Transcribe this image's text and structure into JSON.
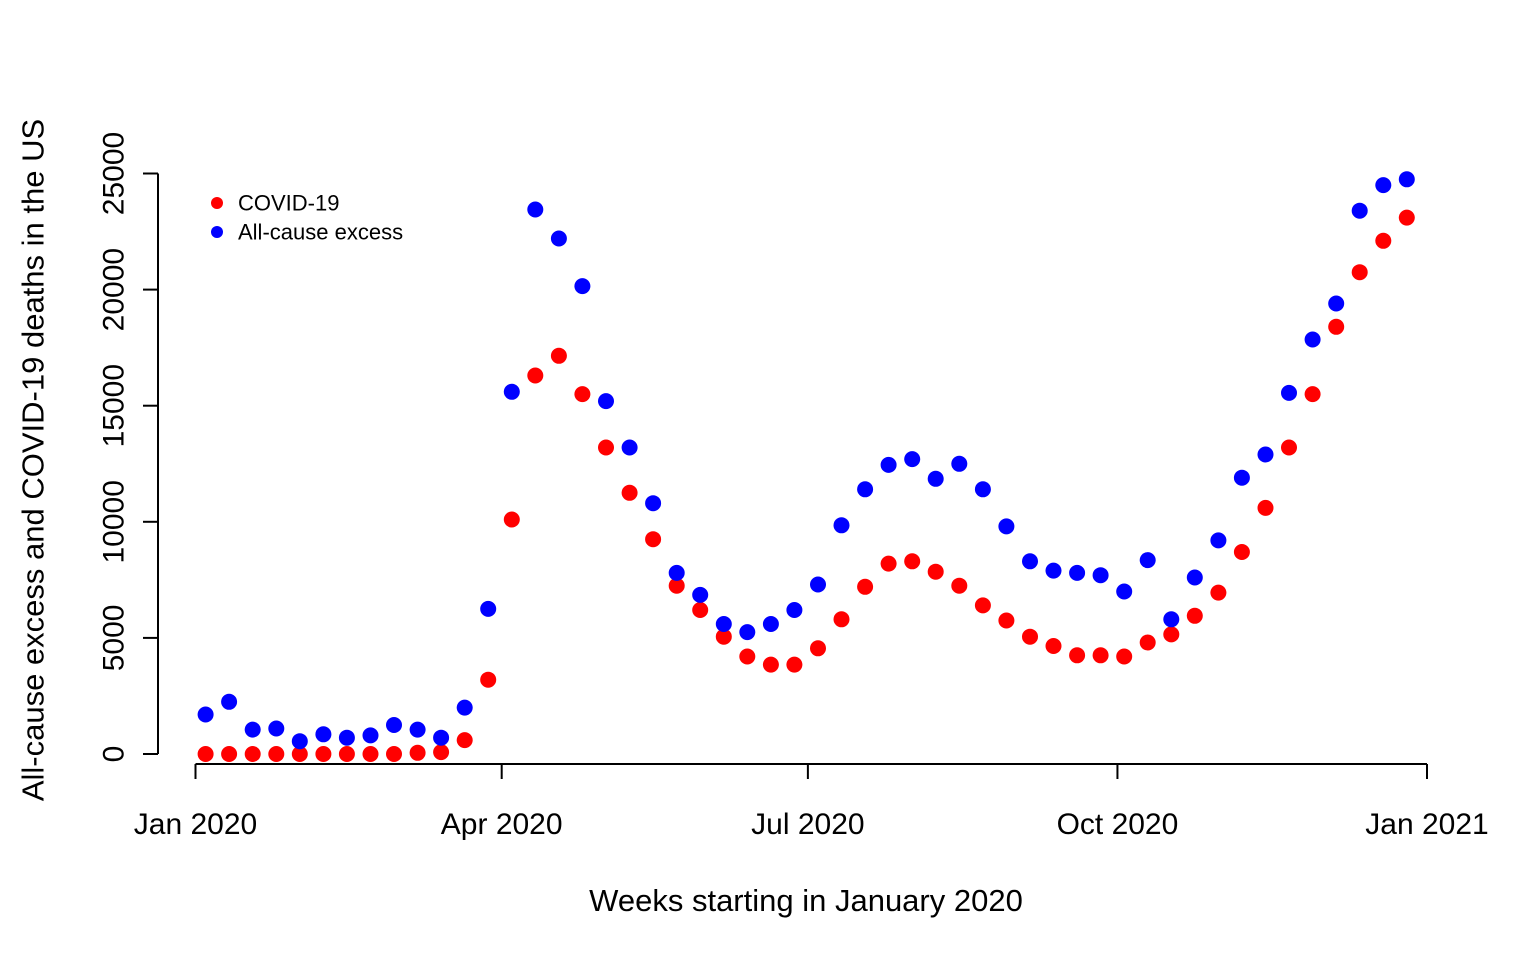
{
  "chart_data": {
    "type": "scatter",
    "title": "",
    "xlabel": "Weeks starting in January 2020",
    "ylabel": "All-cause excess and COVID-19 deaths in the US",
    "x": [
      "2020-01-04",
      "2020-01-11",
      "2020-01-18",
      "2020-01-25",
      "2020-02-01",
      "2020-02-08",
      "2020-02-15",
      "2020-02-22",
      "2020-02-29",
      "2020-03-07",
      "2020-03-14",
      "2020-03-21",
      "2020-03-28",
      "2020-04-04",
      "2020-04-11",
      "2020-04-18",
      "2020-04-25",
      "2020-05-02",
      "2020-05-09",
      "2020-05-16",
      "2020-05-23",
      "2020-05-30",
      "2020-06-06",
      "2020-06-13",
      "2020-06-20",
      "2020-06-27",
      "2020-07-04",
      "2020-07-11",
      "2020-07-18",
      "2020-07-25",
      "2020-08-01",
      "2020-08-08",
      "2020-08-15",
      "2020-08-22",
      "2020-08-29",
      "2020-09-05",
      "2020-09-12",
      "2020-09-19",
      "2020-09-26",
      "2020-10-03",
      "2020-10-10",
      "2020-10-17",
      "2020-10-24",
      "2020-10-31",
      "2020-11-07",
      "2020-11-14",
      "2020-11-21",
      "2020-11-28",
      "2020-12-05",
      "2020-12-12",
      "2020-12-19",
      "2020-12-26"
    ],
    "series": [
      {
        "name": "COVID-19",
        "color": "#ff0000",
        "values": [
          0,
          0,
          0,
          0,
          0,
          0,
          0,
          0,
          0,
          50,
          80,
          600,
          3200,
          10100,
          16300,
          17150,
          15500,
          13200,
          11250,
          9250,
          7250,
          6200,
          5050,
          4200,
          3850,
          3850,
          4550,
          5800,
          7200,
          8200,
          8300,
          7850,
          7250,
          6400,
          5750,
          5050,
          4650,
          4250,
          4250,
          4200,
          4800,
          5150,
          5950,
          6950,
          8700,
          10600,
          13200,
          15500,
          18400,
          20750,
          22100,
          23100
        ]
      },
      {
        "name": "All-cause excess",
        "color": "#0000ff",
        "values": [
          1700,
          2250,
          1050,
          1100,
          550,
          850,
          700,
          800,
          1250,
          1050,
          700,
          2000,
          6250,
          15600,
          23450,
          22200,
          20150,
          15200,
          13200,
          10800,
          7800,
          6850,
          5600,
          5250,
          5600,
          6200,
          7300,
          9850,
          11400,
          12450,
          12700,
          11850,
          12500,
          11400,
          9800,
          8300,
          7900,
          7800,
          7700,
          7000,
          8350,
          5800,
          7600,
          9200,
          11900,
          12900,
          15550,
          17850,
          19400,
          23400,
          24500,
          24750
        ]
      }
    ],
    "xticks": [
      "2020-01-01",
      "2020-04-01",
      "2020-07-01",
      "2020-10-01",
      "2021-01-01"
    ],
    "xtick_labels": [
      "Jan 2020",
      "Apr 2020",
      "Jul 2020",
      "Oct 2020",
      "Jan 2021"
    ],
    "yticks": [
      0,
      5000,
      10000,
      15000,
      20000,
      25000
    ],
    "ytick_labels": [
      "0",
      "5000",
      "10000",
      "15000",
      "20000",
      "25000"
    ],
    "xlim": [
      "2019-12-31",
      "2021-01-01"
    ],
    "ylim": [
      0,
      25000
    ],
    "grid": false,
    "legend": {
      "position": "top-left",
      "entries": [
        "COVID-19",
        "All-cause excess"
      ]
    }
  }
}
